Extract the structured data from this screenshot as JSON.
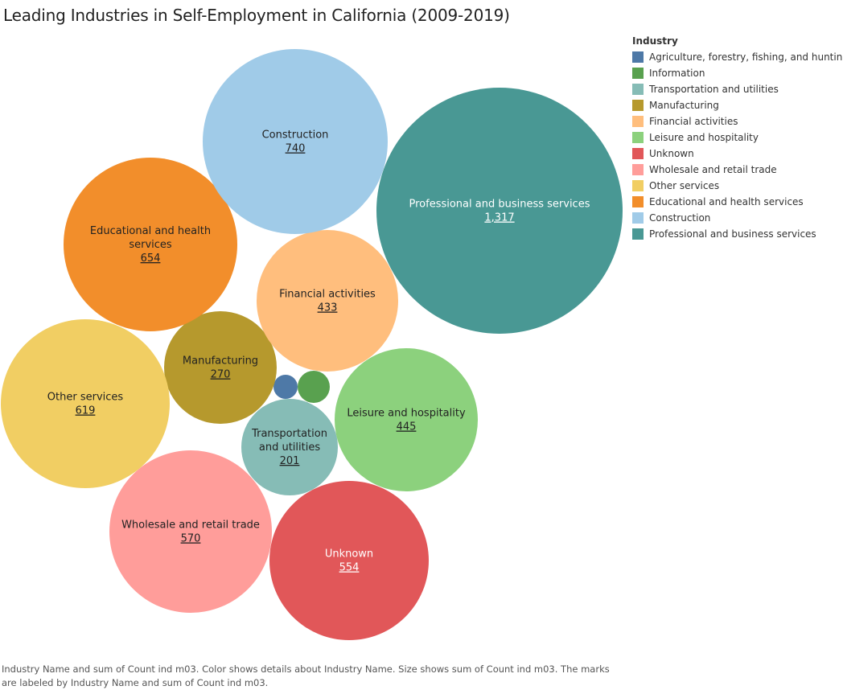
{
  "chart_data": {
    "type": "bubble",
    "title": "Leading Industries in Self-Employment in California (2009-2019)",
    "legend_title": "Industry",
    "legend_placement": "top-right",
    "categories": [
      "Agriculture, forestry, fishing, and hunting",
      "Information",
      "Transportation and utilities",
      "Manufacturing",
      "Financial activities",
      "Leisure and hospitality",
      "Unknown",
      "Wholesale and retail trade",
      "Other services",
      "Educational and health services",
      "Construction",
      "Professional and business services"
    ],
    "series": [
      {
        "name": "Agriculture, forestry, fishing, and hunting",
        "value": null,
        "color": "#4e79a7",
        "labeled": false
      },
      {
        "name": "Information",
        "value": null,
        "color": "#59a14f",
        "labeled": false
      },
      {
        "name": "Transportation and utilities",
        "value": 201,
        "value_text": "201",
        "label_lines": [
          "Transportation",
          "and utilities"
        ],
        "color": "#86bcb6",
        "text_color": "#222222",
        "labeled": true
      },
      {
        "name": "Manufacturing",
        "value": 270,
        "value_text": "270",
        "label_lines": [
          "Manufacturing"
        ],
        "color": "#b6992d",
        "text_color": "#222222",
        "labeled": true
      },
      {
        "name": "Financial activities",
        "value": 433,
        "value_text": "433",
        "label_lines": [
          "Financial activities"
        ],
        "color": "#ffbe7d",
        "text_color": "#222222",
        "labeled": true
      },
      {
        "name": "Leisure and hospitality",
        "value": 445,
        "value_text": "445",
        "label_lines": [
          "Leisure and hospitality"
        ],
        "color": "#8cd17d",
        "text_color": "#222222",
        "labeled": true
      },
      {
        "name": "Unknown",
        "value": 554,
        "value_text": "554",
        "label_lines": [
          "Unknown"
        ],
        "color": "#e15759",
        "text_color": "#ffffff",
        "labeled": true
      },
      {
        "name": "Wholesale and retail trade",
        "value": 570,
        "value_text": "570",
        "label_lines": [
          "Wholesale and retail trade"
        ],
        "color": "#ff9d9a",
        "text_color": "#222222",
        "labeled": true
      },
      {
        "name": "Other services",
        "value": 619,
        "value_text": "619",
        "label_lines": [
          "Other services"
        ],
        "color": "#f1ce63",
        "text_color": "#222222",
        "labeled": true
      },
      {
        "name": "Educational and health services",
        "value": 654,
        "value_text": "654",
        "label_lines": [
          "Educational and health",
          "services"
        ],
        "color": "#f28e2b",
        "text_color": "#222222",
        "labeled": true
      },
      {
        "name": "Construction",
        "value": 740,
        "value_text": "740",
        "label_lines": [
          "Construction"
        ],
        "color": "#a0cbe8",
        "text_color": "#222222",
        "labeled": true
      },
      {
        "name": "Professional and business services",
        "value": 1317,
        "value_text": "1,317",
        "label_lines": [
          "Professional and business services"
        ],
        "color": "#499894",
        "text_color": "#ffffff",
        "labeled": true
      }
    ],
    "caption": "Industry Name and sum of Count ind m03.  Color shows details about Industry Name.  Size shows sum of Count ind m03.  The marks are labeled by Industry Name and sum of Count ind m03."
  }
}
